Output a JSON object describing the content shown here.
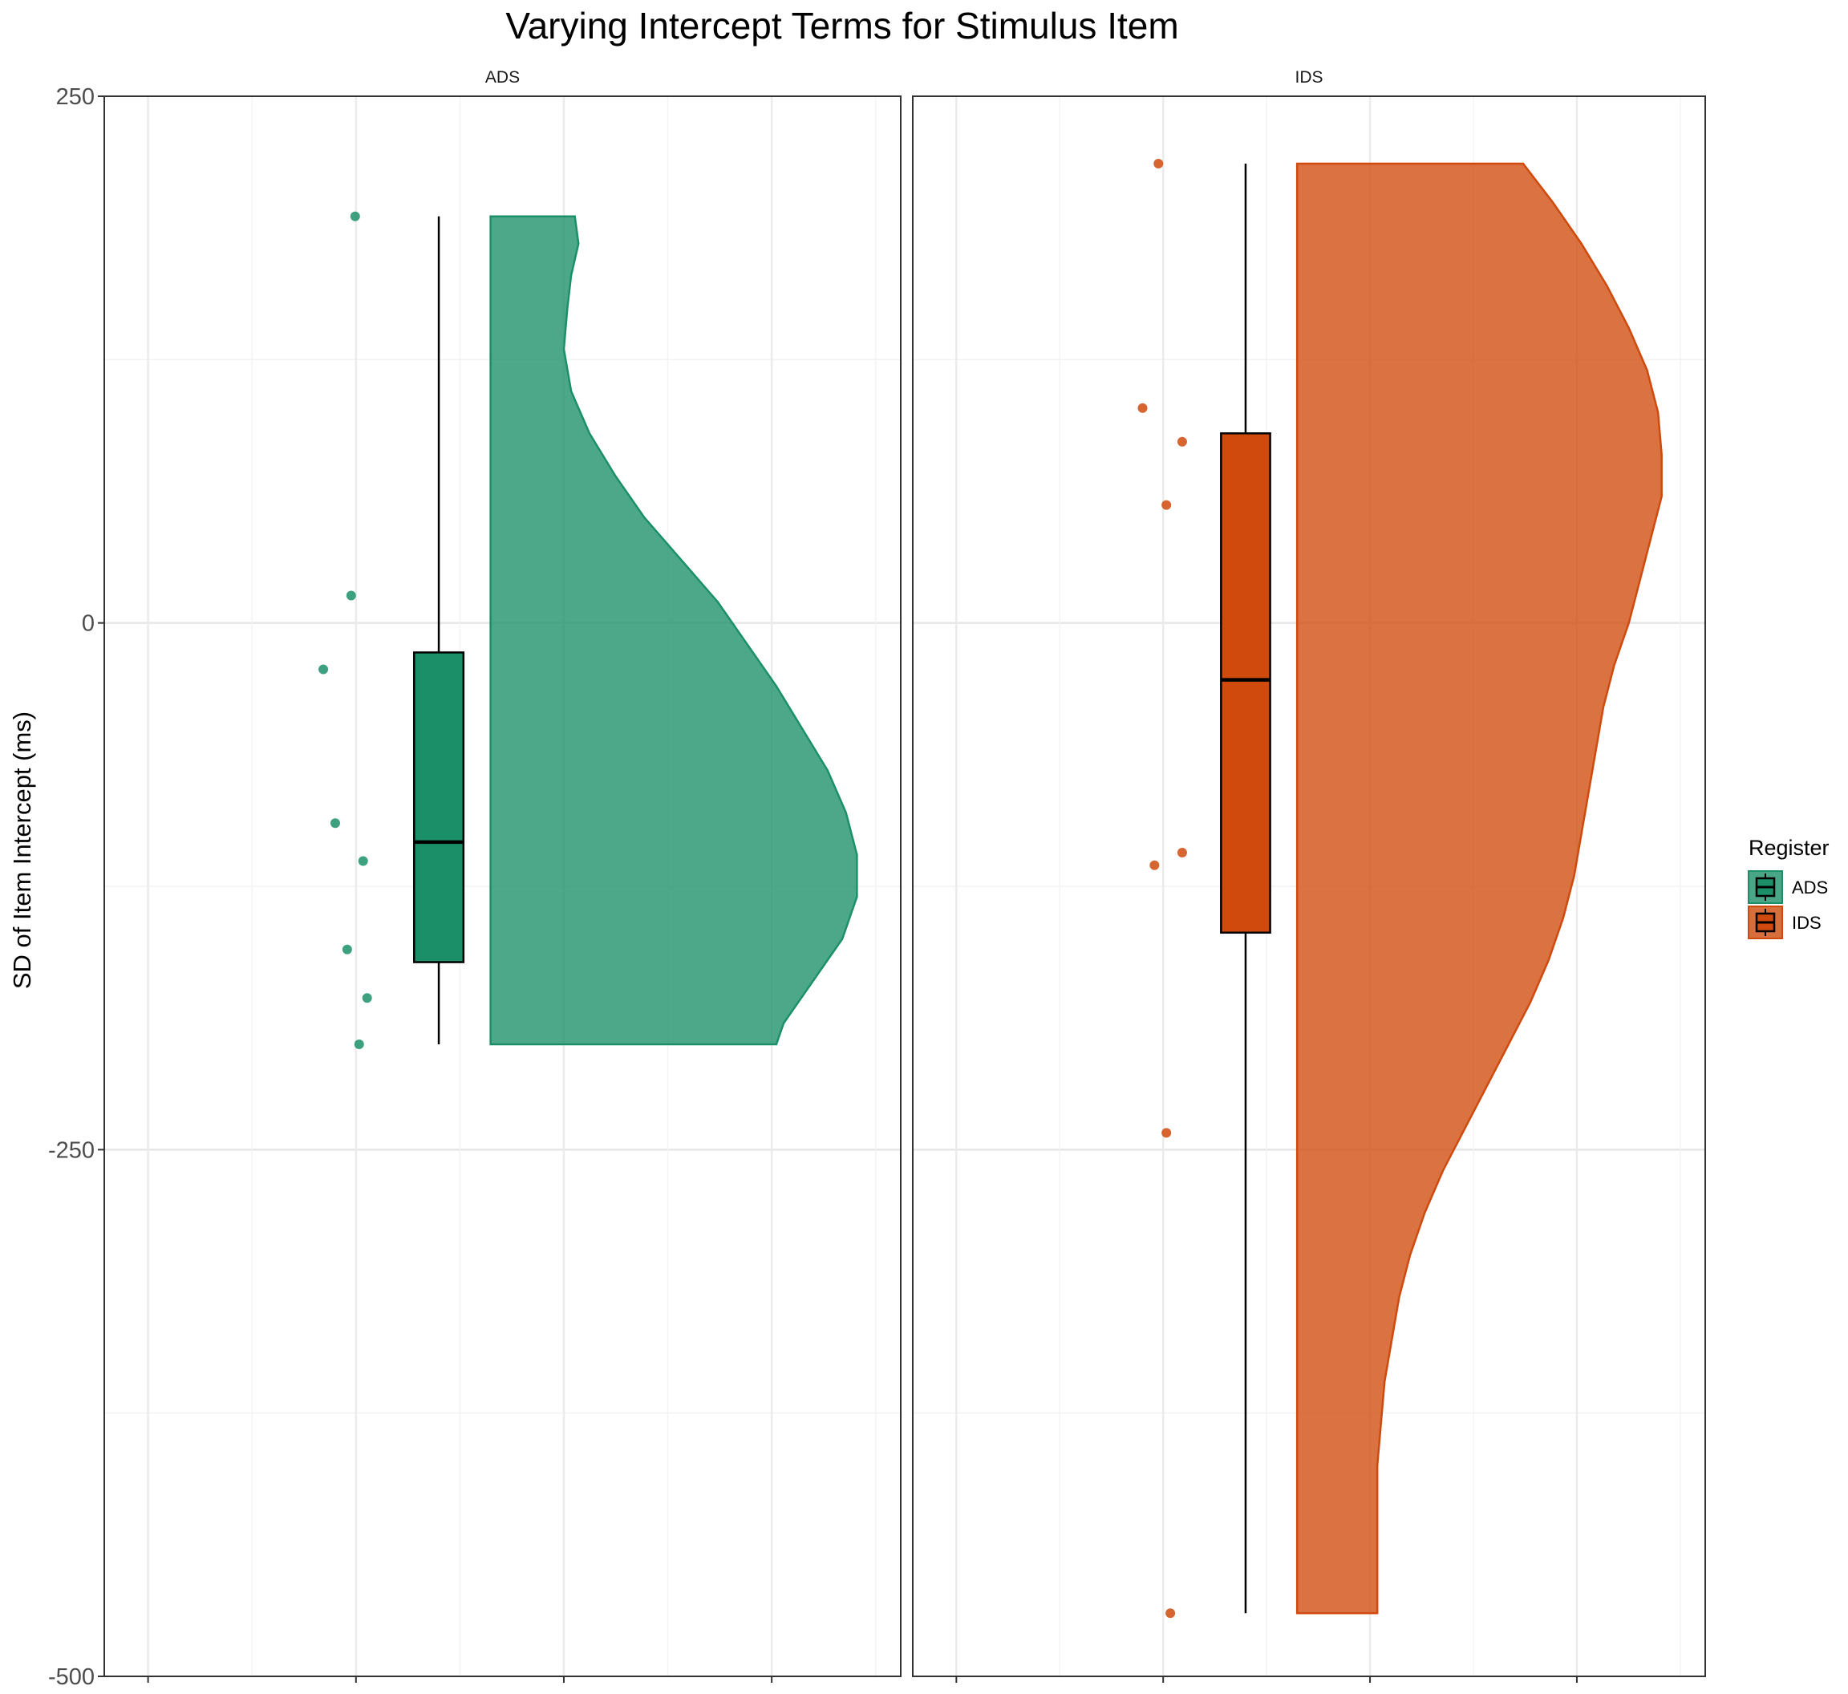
{
  "chart_data": {
    "type": "raincloud",
    "title": "Varying Intercept Terms for Stimulus Item",
    "xlabel": "",
    "ylabel": "SD of Item Intercept (ms)",
    "ylim": [
      -500,
      250
    ],
    "y_ticks": [
      250,
      0,
      -250,
      -500
    ],
    "y_tick_labels": [
      "250",
      "0",
      "-250",
      "-500"
    ],
    "grid": true,
    "legend": {
      "title": "Register",
      "placement": "right",
      "entries": [
        {
          "label": "ADS",
          "color": "#1b9068"
        },
        {
          "label": "IDS",
          "color": "#cf4a0c"
        }
      ]
    },
    "panels": [
      {
        "name": "ADS",
        "color": "#1b9068",
        "points": [
          193,
          13,
          -22,
          -95,
          -113,
          -155,
          -178,
          -200
        ],
        "box": {
          "min": -200,
          "q1": -161,
          "median": -104,
          "q3": -14,
          "max": 193
        },
        "density": [
          {
            "y": 193,
            "w": 0.23
          },
          {
            "y": 180,
            "w": 0.24
          },
          {
            "y": 165,
            "w": 0.22
          },
          {
            "y": 150,
            "w": 0.21
          },
          {
            "y": 130,
            "w": 0.2
          },
          {
            "y": 110,
            "w": 0.22
          },
          {
            "y": 90,
            "w": 0.27
          },
          {
            "y": 70,
            "w": 0.34
          },
          {
            "y": 50,
            "w": 0.42
          },
          {
            "y": 30,
            "w": 0.52
          },
          {
            "y": 10,
            "w": 0.62
          },
          {
            "y": -10,
            "w": 0.7
          },
          {
            "y": -30,
            "w": 0.78
          },
          {
            "y": -50,
            "w": 0.85
          },
          {
            "y": -70,
            "w": 0.92
          },
          {
            "y": -90,
            "w": 0.97
          },
          {
            "y": -110,
            "w": 1.0
          },
          {
            "y": -130,
            "w": 1.0
          },
          {
            "y": -150,
            "w": 0.96
          },
          {
            "y": -170,
            "w": 0.88
          },
          {
            "y": -190,
            "w": 0.8
          },
          {
            "y": -200,
            "w": 0.78
          }
        ]
      },
      {
        "name": "IDS",
        "color": "#cf4a0c",
        "points": [
          218,
          102,
          86,
          56,
          -109,
          -115,
          -242,
          -470
        ],
        "box": {
          "min": -470,
          "q1": -147,
          "median": -27,
          "q3": 90,
          "max": 218
        },
        "density": [
          {
            "y": 218,
            "w": 0.62
          },
          {
            "y": 200,
            "w": 0.7
          },
          {
            "y": 180,
            "w": 0.78
          },
          {
            "y": 160,
            "w": 0.85
          },
          {
            "y": 140,
            "w": 0.91
          },
          {
            "y": 120,
            "w": 0.96
          },
          {
            "y": 100,
            "w": 0.99
          },
          {
            "y": 80,
            "w": 1.0
          },
          {
            "y": 60,
            "w": 1.0
          },
          {
            "y": 40,
            "w": 0.97
          },
          {
            "y": 20,
            "w": 0.94
          },
          {
            "y": 0,
            "w": 0.91
          },
          {
            "y": -20,
            "w": 0.87
          },
          {
            "y": -40,
            "w": 0.84
          },
          {
            "y": -60,
            "w": 0.82
          },
          {
            "y": -80,
            "w": 0.8
          },
          {
            "y": -100,
            "w": 0.78
          },
          {
            "y": -120,
            "w": 0.76
          },
          {
            "y": -140,
            "w": 0.73
          },
          {
            "y": -160,
            "w": 0.69
          },
          {
            "y": -180,
            "w": 0.64
          },
          {
            "y": -200,
            "w": 0.58
          },
          {
            "y": -220,
            "w": 0.52
          },
          {
            "y": -240,
            "w": 0.46
          },
          {
            "y": -260,
            "w": 0.4
          },
          {
            "y": -280,
            "w": 0.35
          },
          {
            "y": -300,
            "w": 0.31
          },
          {
            "y": -320,
            "w": 0.28
          },
          {
            "y": -340,
            "w": 0.26
          },
          {
            "y": -360,
            "w": 0.24
          },
          {
            "y": -380,
            "w": 0.23
          },
          {
            "y": -400,
            "w": 0.22
          },
          {
            "y": -420,
            "w": 0.22
          },
          {
            "y": -440,
            "w": 0.22
          },
          {
            "y": -460,
            "w": 0.22
          },
          {
            "y": -470,
            "w": 0.22
          }
        ]
      }
    ]
  }
}
